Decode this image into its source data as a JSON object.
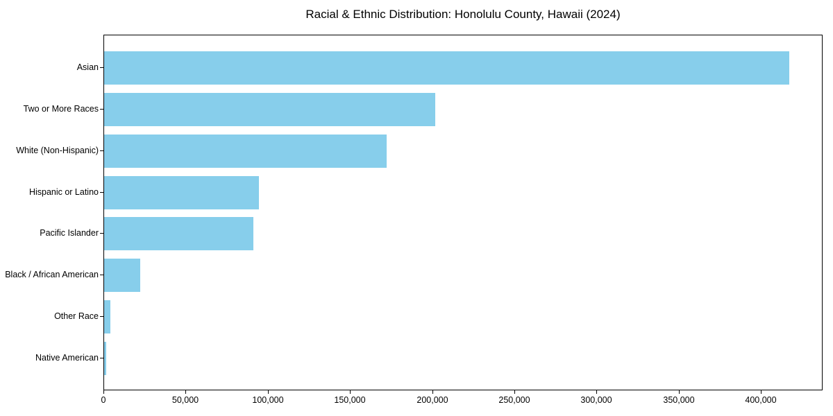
{
  "figure": {
    "background_color": "#ffffff",
    "text_color": "#000000",
    "axis_color": "#000000"
  },
  "chart_data": {
    "type": "bar",
    "orientation": "horizontal",
    "title": "Racial & Ethnic Distribution: Honolulu County, Hawaii (2024)",
    "categories": [
      "Asian",
      "Two or More Races",
      "White (Non-Hispanic)",
      "Hispanic or Latino",
      "Pacific Islander",
      "Black / African American",
      "Other Race",
      "Native American"
    ],
    "values": [
      417000,
      201500,
      172000,
      94000,
      91000,
      22000,
      4000,
      1300
    ],
    "bar_color": "#87CEEB",
    "xlabel": "",
    "ylabel": "",
    "xlim": [
      0,
      437500
    ],
    "x_ticks": [
      0,
      50000,
      100000,
      150000,
      200000,
      250000,
      300000,
      350000,
      400000
    ],
    "x_tick_labels": [
      "0",
      "50,000",
      "100,000",
      "150,000",
      "200,000",
      "250,000",
      "300,000",
      "350,000",
      "400,000"
    ],
    "grid": false,
    "legend_position": "none"
  }
}
